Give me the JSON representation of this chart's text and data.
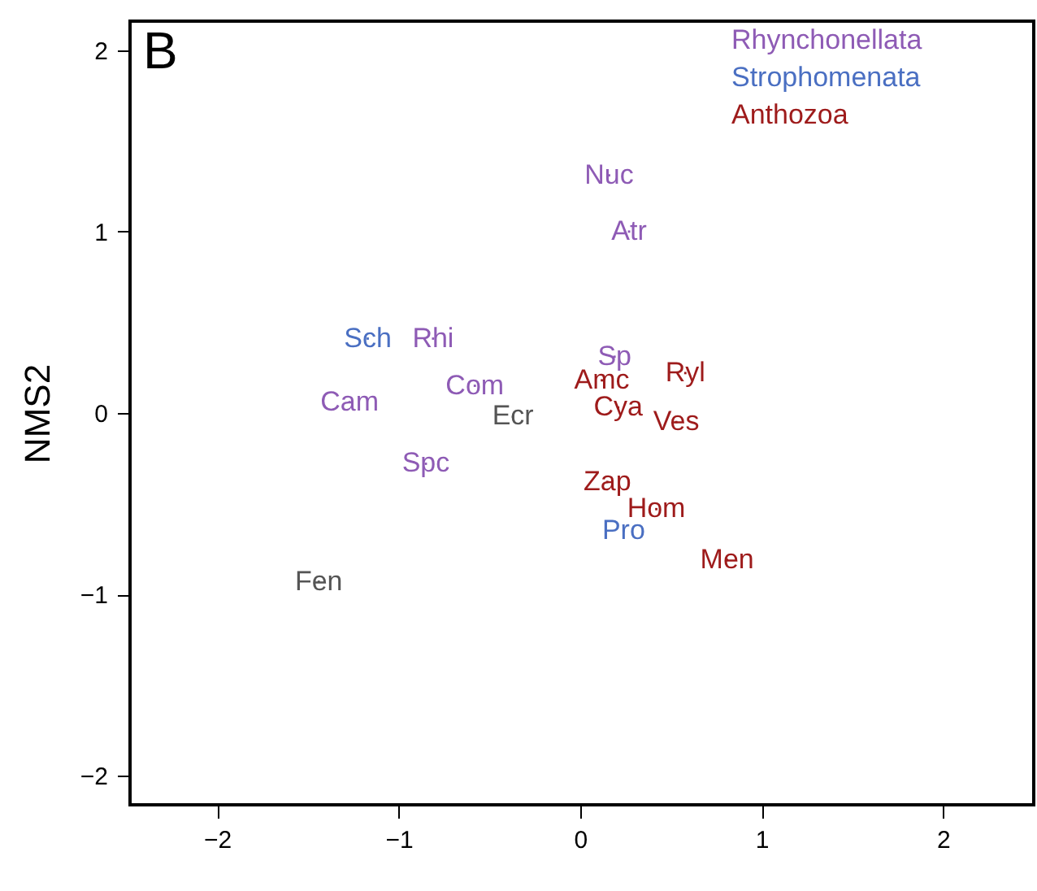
{
  "chart_data": {
    "type": "scatter",
    "ylabel": "NMS2",
    "annotations": [
      "B"
    ],
    "xlim": [
      -2.48,
      2.5
    ],
    "ylim": [
      -2.16,
      2.16
    ],
    "xticks": [
      {
        "value": -2,
        "label": "−2"
      },
      {
        "value": -1,
        "label": "−1"
      },
      {
        "value": 0,
        "label": "0"
      },
      {
        "value": 1,
        "label": "1"
      },
      {
        "value": 2,
        "label": "2"
      }
    ],
    "yticks": [
      {
        "value": -2,
        "label": "−2"
      },
      {
        "value": -1,
        "label": "−1"
      },
      {
        "value": 0,
        "label": "0"
      },
      {
        "value": 1,
        "label": "1"
      },
      {
        "value": 2,
        "label": "2"
      }
    ],
    "grid": false,
    "series": [
      {
        "name": "Rhynchonellata",
        "color": "#8e5bb5",
        "x": [
          0.16,
          0.27,
          -0.81,
          0.19,
          -1.27,
          -0.58,
          -0.85
        ],
        "values": [
          1.31,
          1.0,
          0.41,
          0.31,
          0.06,
          0.15,
          -0.28
        ],
        "value_labels": [
          "Nuc",
          "Atr",
          "Rhi",
          "Sp",
          "Cam",
          "Com",
          "Spc"
        ]
      },
      {
        "name": "Strophomenata",
        "color": "#4a6fc2",
        "x": [
          -1.17,
          0.24
        ],
        "values": [
          0.41,
          -0.65
        ],
        "value_labels": [
          "Sch",
          "Pro"
        ]
      },
      {
        "name": "Anthozoa",
        "color": "#9e1b1b",
        "x": [
          0.58,
          0.12,
          0.21,
          0.53,
          0.15,
          0.42,
          0.81
        ],
        "values": [
          0.22,
          0.18,
          0.03,
          -0.05,
          -0.38,
          -0.53,
          -0.81
        ],
        "value_labels": [
          "Ryl",
          "Amc",
          "Cya",
          "Ves",
          "Zap",
          "Hom",
          "Men"
        ]
      },
      {
        "color": "#555555",
        "x": [
          -0.37,
          -1.44
        ],
        "values": [
          -0.02,
          -0.93
        ],
        "value_labels": [
          "Ecr",
          "Fen"
        ]
      }
    ]
  }
}
